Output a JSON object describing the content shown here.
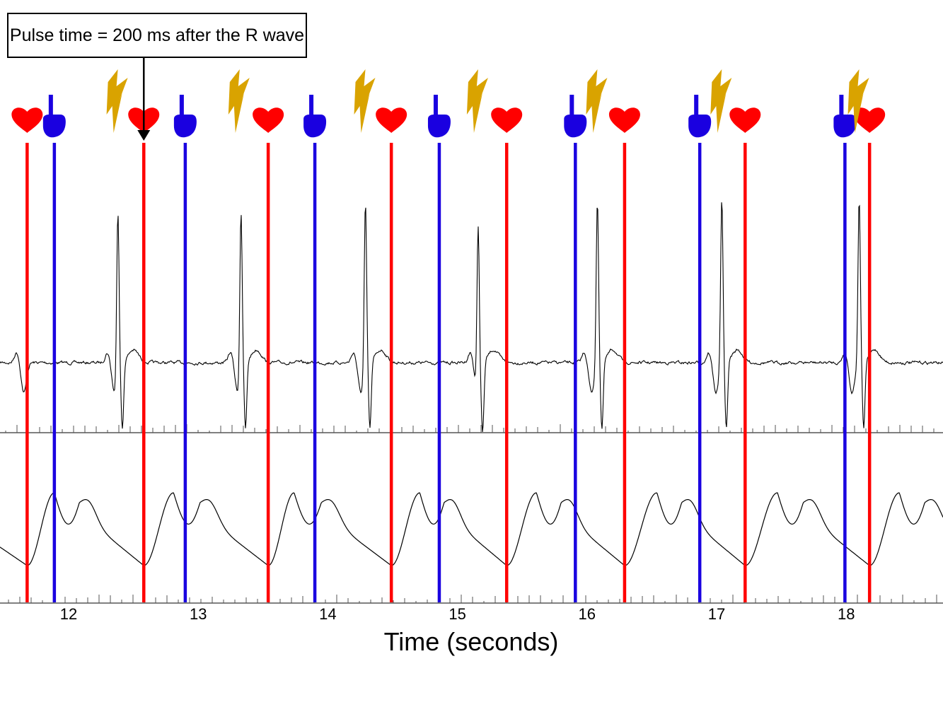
{
  "callout": {
    "text": "Pulse time = 200 ms after the R wave"
  },
  "chart_data": {
    "type": "line",
    "title": "",
    "xlabel": "Time (seconds)",
    "xlim": [
      11.53,
      18.73
    ],
    "xticks": [
      12,
      13,
      14,
      15,
      16,
      17,
      18
    ],
    "colors": {
      "heart_marker": "#ff0000",
      "hand_marker": "#1a00e0",
      "pulse_marker": "#d9a300",
      "trace": "#000000"
    },
    "icons": {
      "heart": "heart-icon",
      "hand": "pointing-hand-icon",
      "pulse": "lightning-bolt-icon"
    },
    "heart_marker_times": [
      11.68,
      12.58,
      13.54,
      14.49,
      15.38,
      16.29,
      17.22,
      18.18
    ],
    "hand_marker_times": [
      11.89,
      12.9,
      13.9,
      14.86,
      15.91,
      16.87,
      17.99
    ],
    "pulse_times": [
      12.38,
      13.32,
      14.29,
      15.16,
      16.08,
      17.04,
      18.1
    ],
    "series": [
      {
        "r_peak_times": [
          12.38,
          13.33,
          14.29,
          15.16,
          16.08,
          17.04,
          18.1
        ],
        "pre_deflection_times": [
          11.6,
          12.3,
          13.25,
          14.2,
          15.1,
          15.98,
          16.94,
          17.99
        ]
      },
      {
        "trough_times": [
          11.68,
          12.58,
          13.54,
          14.49,
          15.38,
          16.29,
          17.22,
          18.18
        ],
        "peak_times": [
          11.89,
          12.81,
          13.74,
          14.71,
          15.61,
          16.54,
          17.47,
          18.41
        ]
      }
    ]
  }
}
